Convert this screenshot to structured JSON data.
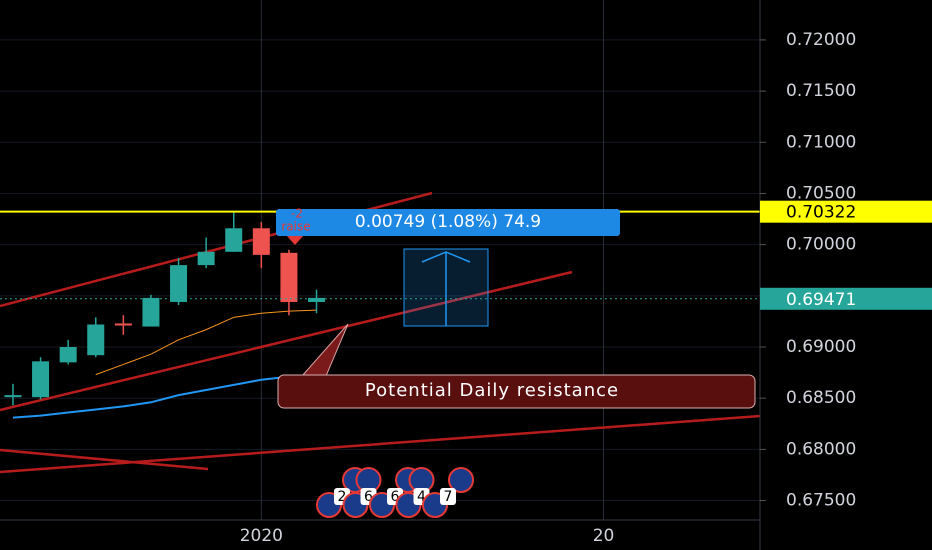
{
  "chart_data": {
    "type": "candlestick",
    "xlim": [
      -0.47,
      27.07
    ],
    "ylim": [
      0.6731,
      0.7239
    ],
    "xticks": [
      {
        "value": 9,
        "label": "2020"
      },
      {
        "value": 21.4,
        "label": "20"
      }
    ],
    "yticks": [
      {
        "value": 0.675,
        "label": "0.67500"
      },
      {
        "value": 0.68,
        "label": "0.68000"
      },
      {
        "value": 0.685,
        "label": "0.68500"
      },
      {
        "value": 0.69,
        "label": "0.69000"
      },
      {
        "value": 0.695,
        "label": "0.69500"
      },
      {
        "value": 0.7,
        "label": "0.70000"
      },
      {
        "value": 0.705,
        "label": "0.70500"
      },
      {
        "value": 0.71,
        "label": "0.71000"
      },
      {
        "value": 0.715,
        "label": "0.71500"
      },
      {
        "value": 0.72,
        "label": "0.72000"
      }
    ],
    "up_color": "#26a69a",
    "down_color": "#ef5350",
    "x": [
      0,
      1,
      2,
      3,
      4,
      5,
      6,
      7,
      8,
      9,
      10,
      11
    ],
    "open": [
      0.6851,
      0.6851,
      0.6885,
      0.6892,
      0.6923,
      0.692,
      0.6944,
      0.698,
      0.6993,
      0.7016,
      0.6992,
      0.6944
    ],
    "high": [
      0.6864,
      0.689,
      0.6907,
      0.6929,
      0.6931,
      0.6951,
      0.6987,
      0.7007,
      0.7032,
      0.7022,
      0.6995,
      0.6956
    ],
    "low": [
      0.6843,
      0.6849,
      0.6883,
      0.689,
      0.6912,
      0.692,
      0.6941,
      0.6977,
      0.6993,
      0.6977,
      0.6931,
      0.6933
    ],
    "close": [
      0.6853,
      0.6886,
      0.69,
      0.6922,
      0.6921,
      0.6948,
      0.698,
      0.6993,
      0.7016,
      0.699,
      0.6944,
      0.6948
    ],
    "lines": [
      {
        "color": "#f7931e",
        "values": [
          null,
          null,
          null,
          0.6873,
          0.6883,
          0.6893,
          0.6907,
          0.6917,
          0.6929,
          0.6933,
          0.6935,
          0.6936
        ]
      },
      {
        "color": "#2196f3",
        "values": [
          0.6831,
          0.6833,
          0.6836,
          0.6839,
          0.6842,
          0.6846,
          0.6853,
          0.6858,
          0.6863,
          0.6868,
          0.6871,
          null
        ]
      }
    ],
    "price_lines": [
      {
        "value": 0.70322,
        "label": "0.70322",
        "color": "#ffff00",
        "text_color": "#000000"
      },
      {
        "value": 0.69471,
        "label": "0.69471",
        "color": "#26a69a",
        "text_color": "#ffffff"
      }
    ],
    "measure_label": "0.00749 (1.08%) 74.9",
    "note": "Potential Daily resistance",
    "signal_count": "-2",
    "signal_label": "raise",
    "event_counts": [
      2,
      6,
      6,
      4,
      7
    ]
  }
}
